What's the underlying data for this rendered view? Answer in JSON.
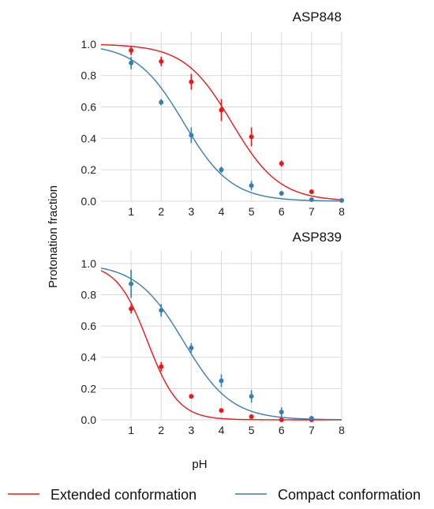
{
  "chart_data": {
    "type": "scatter",
    "ylabel": "Protonation fraction",
    "xlabel": "pH",
    "xlim": [
      0,
      8
    ],
    "ylim": [
      0,
      1.08
    ],
    "xticks": [
      1,
      2,
      3,
      4,
      5,
      6,
      7,
      8
    ],
    "yticks": [
      0.0,
      0.2,
      0.4,
      0.6,
      0.8,
      1.0
    ],
    "grid": true,
    "legend_position": "bottom",
    "legend": [
      {
        "name": "Extended conformation",
        "color": "#e8191a"
      },
      {
        "name": "Compact conformation",
        "color": "#3a7dae"
      }
    ],
    "panels": [
      {
        "title": "ASP848",
        "series": [
          {
            "name": "Extended conformation",
            "color": "#e8191a",
            "x": [
              1,
              2,
              3,
              4,
              5,
              6,
              7
            ],
            "y": [
              0.96,
              0.89,
              0.76,
              0.58,
              0.41,
              0.24,
              0.06
            ],
            "err": [
              0.03,
              0.03,
              0.05,
              0.07,
              0.06,
              0.02,
              0.01
            ],
            "fit": {
              "pKa": 4.35,
              "n": 0.55
            }
          },
          {
            "name": "Compact conformation",
            "color": "#3a7dae",
            "x": [
              1,
              2,
              3,
              4,
              5,
              6,
              7,
              8
            ],
            "y": [
              0.88,
              0.63,
              0.42,
              0.2,
              0.1,
              0.05,
              0.01,
              0.005
            ],
            "err": [
              0.04,
              0.02,
              0.05,
              0.02,
              0.03,
              0.01,
              0.01,
              0.005
            ],
            "fit": {
              "pKa": 2.75,
              "n": 0.55
            }
          }
        ]
      },
      {
        "title": "ASP839",
        "series": [
          {
            "name": "Extended conformation",
            "color": "#e8191a",
            "x": [
              1,
              2,
              3,
              4,
              5,
              6,
              7
            ],
            "y": [
              0.71,
              0.34,
              0.15,
              0.06,
              0.02,
              0.0,
              0.0
            ],
            "err": [
              0.03,
              0.03,
              0.01,
              0.01,
              0.01,
              0.005,
              0.005
            ],
            "fit": {
              "pKa": 1.55,
              "n": 0.85
            }
          },
          {
            "name": "Compact conformation",
            "color": "#3a7dae",
            "x": [
              1,
              2,
              3,
              4,
              5,
              6,
              7
            ],
            "y": [
              0.87,
              0.7,
              0.46,
              0.25,
              0.15,
              0.05,
              0.01
            ],
            "err": [
              0.09,
              0.04,
              0.03,
              0.04,
              0.04,
              0.03,
              0.01
            ],
            "fit": {
              "pKa": 2.75,
              "n": 0.55
            }
          }
        ]
      }
    ]
  }
}
